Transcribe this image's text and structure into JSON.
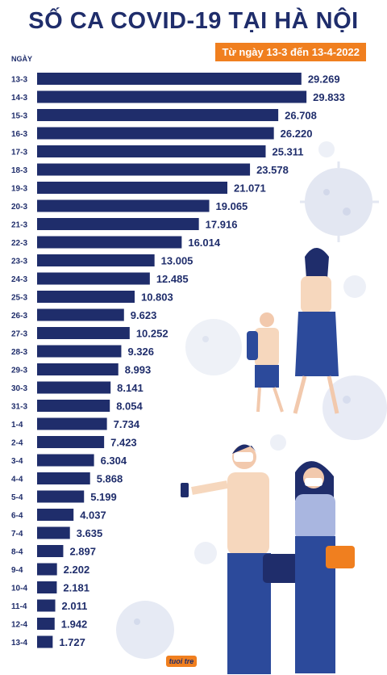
{
  "header": {
    "title": "SỐ CA COVID-19 TẠI HÀ NỘI",
    "subtitle": "Từ ngày 13-3 đến 13-4-2022",
    "axis_label": "NGÀY"
  },
  "colors": {
    "bar": "#1f2d6b",
    "accent": "#f07f1f",
    "decoration": "#e3e7f2"
  },
  "chart_data": {
    "type": "bar",
    "orientation": "horizontal",
    "title": "SỐ CA COVID-19 TẠI HÀ NỘI",
    "subtitle": "Từ ngày 13-3 đến 13-4-2022",
    "ylabel": "NGÀY",
    "xlim": [
      0,
      30000
    ],
    "categories": [
      "13-3",
      "14-3",
      "15-3",
      "16-3",
      "17-3",
      "18-3",
      "19-3",
      "20-3",
      "21-3",
      "22-3",
      "23-3",
      "24-3",
      "25-3",
      "26-3",
      "27-3",
      "28-3",
      "29-3",
      "30-3",
      "31-3",
      "1-4",
      "2-4",
      "3-4",
      "4-4",
      "5-4",
      "6-4",
      "7-4",
      "8-4",
      "9-4",
      "10-4",
      "11-4",
      "12-4",
      "13-4"
    ],
    "values": [
      29269,
      29833,
      26708,
      26220,
      25311,
      23578,
      21071,
      19065,
      17916,
      16014,
      13005,
      12485,
      10803,
      9623,
      10252,
      9326,
      8993,
      8141,
      8054,
      7734,
      7423,
      6304,
      5868,
      5199,
      4037,
      3635,
      2897,
      2202,
      2181,
      2011,
      1942,
      1727
    ],
    "value_labels": [
      "29.269",
      "29.833",
      "26.708",
      "26.220",
      "25.311",
      "23.578",
      "21.071",
      "19.065",
      "17.916",
      "16.014",
      "13.005",
      "12.485",
      "10.803",
      "9.623",
      "10.252",
      "9.326",
      "8.993",
      "8.141",
      "8.054",
      "7.734",
      "7.423",
      "6.304",
      "5.868",
      "5.199",
      "4.037",
      "3.635",
      "2.897",
      "2.202",
      "2.181",
      "2.011",
      "1.942",
      "1.727"
    ]
  }
}
